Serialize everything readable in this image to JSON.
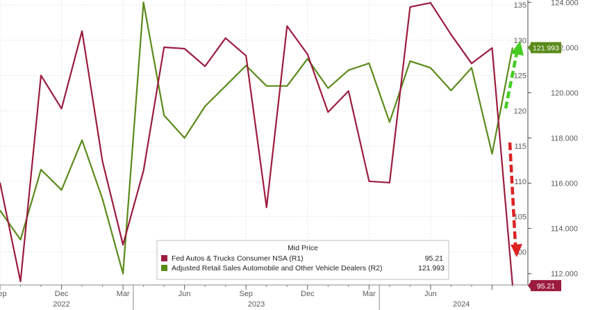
{
  "chart_data": {
    "type": "line",
    "legend_title": "Mid Price",
    "x_tick_labels": [
      "Sep",
      "Dec",
      "Mar",
      "Jun",
      "Sep",
      "Dec",
      "Mar",
      "Jun"
    ],
    "year_labels": [
      "2022",
      "2023",
      "2024"
    ],
    "axis_left": {
      "ticks": [
        100,
        105,
        110,
        115,
        120,
        125,
        130,
        135
      ],
      "range": [
        95.3,
        135.7
      ]
    },
    "axis_right": {
      "ticks": [
        "112.000",
        "114.000",
        "116.000",
        "118.000",
        "120.000",
        "122.000",
        "124.000"
      ],
      "range": [
        111.5,
        124.1
      ]
    },
    "grid": true,
    "legend_position": "bottom-right",
    "months": [
      "2022-06",
      "2022-07",
      "2022-08",
      "2022-09",
      "2022-10",
      "2022-11",
      "2022-12",
      "2023-01",
      "2023-02",
      "2023-03",
      "2023-04",
      "2023-05",
      "2023-06",
      "2023-07",
      "2023-08",
      "2023-09",
      "2023-10",
      "2023-11",
      "2023-12",
      "2024-01",
      "2024-02",
      "2024-03",
      "2024-04",
      "2024-05",
      "2024-06",
      "2024-07"
    ],
    "series": [
      {
        "name": "Fed Autos & Trucks Consumer NSA  (R1)",
        "axis": "left",
        "color": "#9b1b3e",
        "last_value": "95.21",
        "values": [
          109.8,
          95.8,
          125.0,
          120.3,
          131.3,
          112.8,
          101.0,
          111.5,
          129.0,
          128.8,
          126.3,
          130.3,
          127.8,
          106.3,
          132.0,
          128.0,
          119.8,
          122.8,
          110.0,
          109.8,
          134.7,
          135.3,
          130.8,
          126.7,
          128.9,
          95.21
        ]
      },
      {
        "name": "Adjusted Retail Sales Automobile and Other Vehicle Dealers  (R2)",
        "axis": "right",
        "color": "#5a8a1a",
        "last_value": "121.993",
        "values": [
          114.8,
          113.5,
          116.6,
          115.7,
          117.9,
          115.3,
          112.0,
          124.0,
          119.0,
          118.0,
          119.4,
          120.3,
          121.2,
          120.3,
          120.3,
          121.5,
          120.2,
          121.0,
          121.3,
          118.7,
          121.4,
          121.1,
          120.1,
          121.1,
          117.3,
          122.0
        ]
      }
    ],
    "annotations": [
      {
        "type": "arrow",
        "direction": "up",
        "color": "#44cc22"
      },
      {
        "type": "arrow",
        "direction": "down",
        "color": "#dd2222"
      }
    ]
  }
}
